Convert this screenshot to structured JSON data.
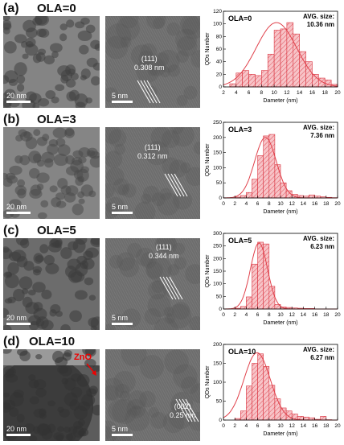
{
  "figure": {
    "rows": [
      {
        "label": "(a)",
        "title": "OLA=0",
        "scale_left": "20 nm",
        "scale_mid": "5 nm",
        "plane": "(111)",
        "spacing": "0.308 nm",
        "tone": "#848484",
        "particle": "#404040"
      },
      {
        "label": "(b)",
        "title": "OLA=3",
        "scale_left": "20 nm",
        "scale_mid": "5 nm",
        "plane": "(111)",
        "spacing": "0.312 nm",
        "tone": "#858585",
        "particle": "#4a4a4a"
      },
      {
        "label": "(c)",
        "title": "OLA=5",
        "scale_left": "20 nm",
        "scale_mid": "5 nm",
        "plane": "(111)",
        "spacing": "0.344 nm",
        "tone": "#6c6c6c",
        "particle": "#3c3c3c"
      },
      {
        "label": "(d)",
        "title": "OLA=10",
        "scale_left": "20 nm",
        "scale_mid": "5 nm",
        "plane": "(002)",
        "spacing": "0.25 nm",
        "tone": "#5c5c5c",
        "particle": "#333333",
        "annotation": "ZnO"
      }
    ]
  },
  "chart_data": [
    {
      "type": "bar",
      "title": "OLA=0",
      "subtitle": "AVG. size:",
      "avg_value": "10.36 nm",
      "xlabel": "Dameter (nm)",
      "ylabel": "QDs Number",
      "xlim": [
        2,
        20
      ],
      "xticks": [
        2,
        4,
        6,
        8,
        10,
        12,
        14,
        16,
        18,
        20
      ],
      "ylim": [
        0,
        120
      ],
      "yticks": [
        0,
        20,
        40,
        60,
        80,
        100,
        120
      ],
      "bin_width": 1,
      "bins_start": [
        3,
        4,
        5,
        6,
        7,
        8,
        9,
        10,
        11,
        12,
        13,
        14,
        15,
        16,
        17,
        18,
        19
      ],
      "values": [
        5,
        22,
        26,
        20,
        18,
        26,
        52,
        90,
        92,
        102,
        84,
        56,
        40,
        20,
        14,
        11,
        4
      ],
      "fit": {
        "mean": 10.36,
        "sigma": 3.2,
        "peak": 102
      }
    },
    {
      "type": "bar",
      "title": "OLA=3",
      "subtitle": "AVG. size:",
      "avg_value": "7.36 nm",
      "xlabel": "Dameter (nm)",
      "ylabel": "QDs Number",
      "xlim": [
        0,
        20
      ],
      "xticks": [
        0,
        2,
        4,
        6,
        8,
        10,
        12,
        14,
        16,
        18,
        20
      ],
      "ylim": [
        0,
        250
      ],
      "yticks": [
        0,
        50,
        100,
        150,
        200,
        250
      ],
      "bin_width": 1,
      "bins_start": [
        2,
        3,
        4,
        5,
        6,
        7,
        8,
        9,
        10,
        11,
        12,
        13,
        14,
        15,
        16,
        17,
        18,
        19
      ],
      "values": [
        3,
        8,
        18,
        62,
        140,
        205,
        210,
        110,
        50,
        24,
        12,
        8,
        6,
        10,
        6,
        4,
        2,
        1
      ],
      "fit": {
        "mean": 7.36,
        "sigma": 1.9,
        "peak": 200
      }
    },
    {
      "type": "bar",
      "title": "OLA=5",
      "subtitle": "AVG. size:",
      "avg_value": "6.23 nm",
      "xlabel": "Dameter (nm)",
      "ylabel": "QDs Number",
      "xlim": [
        0,
        20
      ],
      "xticks": [
        0,
        2,
        4,
        6,
        8,
        10,
        12,
        14,
        16,
        18,
        20
      ],
      "ylim": [
        0,
        300
      ],
      "yticks": [
        0,
        50,
        100,
        150,
        200,
        250,
        300
      ],
      "bin_width": 1,
      "bins_start": [
        2,
        3,
        4,
        5,
        6,
        7,
        8,
        9,
        10,
        11,
        12,
        13,
        14,
        15
      ],
      "values": [
        3,
        10,
        48,
        178,
        265,
        258,
        90,
        18,
        8,
        6,
        4,
        3,
        2,
        2
      ],
      "fit": {
        "mean": 6.23,
        "sigma": 1.5,
        "peak": 262
      }
    },
    {
      "type": "bar",
      "title": "OLA=10",
      "subtitle": "AVG. size:",
      "avg_value": "6.27 nm",
      "xlabel": "Dameter (nm)",
      "ylabel": "QDs Number",
      "xlim": [
        0,
        20
      ],
      "xticks": [
        0,
        2,
        4,
        6,
        8,
        10,
        12,
        14,
        16,
        18,
        20
      ],
      "ylim": [
        0,
        200
      ],
      "yticks": [
        0,
        50,
        100,
        150,
        200
      ],
      "bin_width": 1,
      "bins_start": [
        2,
        3,
        4,
        5,
        6,
        7,
        8,
        9,
        10,
        11,
        12,
        13,
        14,
        15,
        16,
        17,
        18
      ],
      "values": [
        4,
        24,
        90,
        150,
        175,
        142,
        92,
        56,
        32,
        24,
        16,
        10,
        8,
        6,
        2,
        10,
        1
      ],
      "fit": {
        "mean": 5.9,
        "sigma": 2.3,
        "peak": 178
      }
    }
  ]
}
